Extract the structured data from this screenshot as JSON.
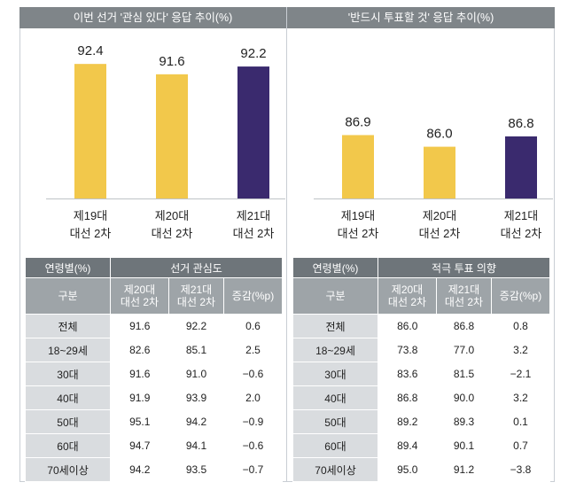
{
  "left_panel": {
    "title": "이번 선거 '관심 있다' 응답 추이(%)",
    "table_header": {
      "age": "연령별(%)",
      "group": "선거 관심도",
      "gubun": "구분",
      "col1": "제20대\n대선 2차",
      "col2": "제21대\n대선 2차",
      "col3": "증감(%p)"
    },
    "rows": [
      {
        "label": "전체",
        "v1": "91.6",
        "v2": "92.2",
        "v3": "0.6"
      },
      {
        "label": "18~29세",
        "v1": "82.6",
        "v2": "85.1",
        "v3": "2.5"
      },
      {
        "label": "30대",
        "v1": "91.6",
        "v2": "91.0",
        "v3": "−0.6"
      },
      {
        "label": "40대",
        "v1": "91.9",
        "v2": "93.9",
        "v3": "2.0"
      },
      {
        "label": "50대",
        "v1": "95.1",
        "v2": "94.2",
        "v3": "−0.9"
      },
      {
        "label": "60대",
        "v1": "94.7",
        "v2": "94.1",
        "v3": "−0.6"
      },
      {
        "label": "70세이상",
        "v1": "94.2",
        "v2": "93.5",
        "v3": "−0.7"
      }
    ]
  },
  "right_panel": {
    "title": "'반드시 투표할 것' 응답 추이(%)",
    "table_header": {
      "age": "연령별(%)",
      "group": "적극 투표 의향",
      "gubun": "구분",
      "col1": "제20대\n대선 2차",
      "col2": "제21대\n대선 2차",
      "col3": "증감(%p)"
    },
    "rows": [
      {
        "label": "전체",
        "v1": "86.0",
        "v2": "86.8",
        "v3": "0.8"
      },
      {
        "label": "18~29세",
        "v1": "73.8",
        "v2": "77.0",
        "v3": "3.2"
      },
      {
        "label": "30대",
        "v1": "83.6",
        "v2": "81.5",
        "v3": "−2.1"
      },
      {
        "label": "40대",
        "v1": "86.8",
        "v2": "90.0",
        "v3": "3.2"
      },
      {
        "label": "50대",
        "v1": "89.2",
        "v2": "89.3",
        "v3": "0.1"
      },
      {
        "label": "60대",
        "v1": "89.4",
        "v2": "90.1",
        "v3": "0.7"
      },
      {
        "label": "70세이상",
        "v1": "95.0",
        "v2": "91.2",
        "v3": "−3.8"
      }
    ]
  },
  "colors": {
    "gold": "#f2c84b",
    "navy": "#3a2a6e",
    "header_dark": "#6e757a",
    "header_light": "#9ea4a8",
    "row_label": "#d9dcdf",
    "title_bar": "#7f8589"
  },
  "chart_data": [
    {
      "type": "bar",
      "title": "이번 선거 '관심 있다' 응답 추이(%)",
      "categories": [
        "제19대\n대선 2차",
        "제20대\n대선 2차",
        "제21대\n대선 2차"
      ],
      "values": [
        92.4,
        91.6,
        92.2
      ],
      "value_labels": [
        "92.4",
        "91.6",
        "92.2"
      ],
      "bar_colors": [
        "#f2c84b",
        "#f2c84b",
        "#3a2a6e"
      ],
      "ylim": [
        0,
        100
      ]
    },
    {
      "type": "bar",
      "title": "'반드시 투표할 것' 응답 추이(%)",
      "categories": [
        "제19대\n대선 2차",
        "제20대\n대선 2차",
        "제21대\n대선 2차"
      ],
      "values": [
        86.9,
        86.0,
        86.8
      ],
      "value_labels": [
        "86.9",
        "86.0",
        "86.8"
      ],
      "bar_colors": [
        "#f2c84b",
        "#f2c84b",
        "#3a2a6e"
      ],
      "ylim": [
        0,
        100
      ]
    }
  ]
}
